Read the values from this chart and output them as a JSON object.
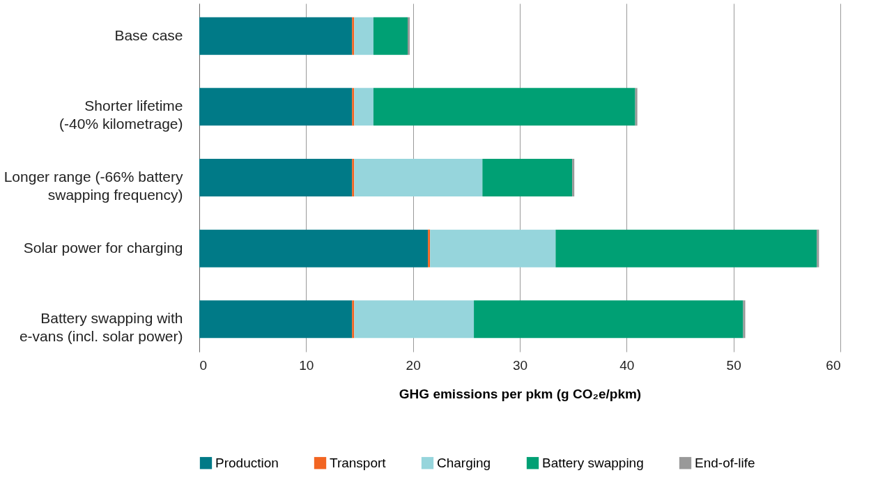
{
  "chart_data": {
    "type": "bar",
    "orientation": "horizontal",
    "stacked": true,
    "categories": [
      "Base case",
      "Shorter lifetime\n(-40% kilometrage)",
      "Longer range (-66% battery\nswapping frequency)",
      "Solar power for charging",
      "Battery swapping with\ne-vans (incl. solar power)"
    ],
    "series": [
      {
        "name": "Production",
        "color": "#007a87",
        "values": [
          14.3,
          14.3,
          14.3,
          21.4,
          14.3
        ]
      },
      {
        "name": "Transport",
        "color": "#f26522",
        "values": [
          0.2,
          0.2,
          0.2,
          0.2,
          0.2
        ]
      },
      {
        "name": "Charging",
        "color": "#96d5dc",
        "values": [
          1.8,
          1.8,
          12.0,
          11.75,
          11.2
        ]
      },
      {
        "name": "Battery swapping",
        "color": "#00a074",
        "values": [
          3.2,
          24.5,
          8.4,
          24.45,
          25.2
        ]
      },
      {
        "name": "End-of-life",
        "color": "#999999",
        "values": [
          0.2,
          0.2,
          0.2,
          0.2,
          0.2
        ]
      }
    ],
    "xlabel": "GHG emissions per pkm (g CO₂e/pkm)",
    "xlim": [
      0,
      60
    ],
    "xticks": [
      0,
      10,
      20,
      30,
      40,
      50,
      60
    ],
    "grid": "x",
    "legend": "bottom"
  }
}
